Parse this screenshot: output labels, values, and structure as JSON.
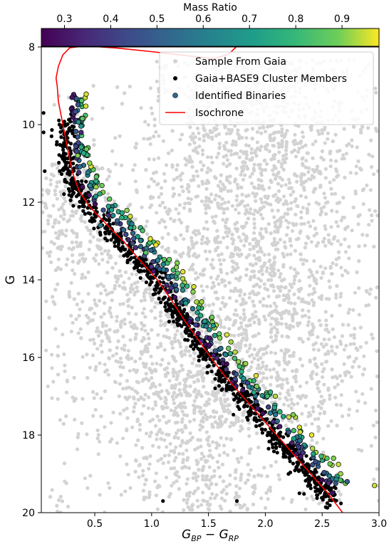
{
  "chart_data": {
    "type": "scatter",
    "title": "",
    "xlabel": "G_BP − G_RP",
    "xlabel_parts": {
      "main": "G",
      "sub1": "BP",
      "mid": " − G",
      "sub2": "RP"
    },
    "ylabel": "G",
    "xlim": [
      0.03,
      3.0
    ],
    "ylim": [
      20,
      8
    ],
    "y_inverted": true,
    "x_ticks": [
      0.5,
      1.0,
      1.5,
      2.0,
      2.5,
      3.0
    ],
    "x_tick_labels": [
      "0.5",
      "1.0",
      "1.5",
      "2.0",
      "2.5",
      "3.0"
    ],
    "y_ticks": [
      8,
      10,
      12,
      14,
      16,
      18,
      20
    ],
    "y_tick_labels": [
      "8",
      "10",
      "12",
      "14",
      "16",
      "18",
      "20"
    ],
    "grid": false,
    "legend_position": "top-right",
    "colorbar": {
      "label": "Mass Ratio",
      "range": [
        0.25,
        0.98
      ],
      "ticks": [
        0.3,
        0.4,
        0.5,
        0.6,
        0.7,
        0.8,
        0.9
      ],
      "tick_labels": [
        "0.3",
        "0.4",
        "0.5",
        "0.6",
        "0.7",
        "0.8",
        "0.9"
      ],
      "colormap": "viridis",
      "position": "top"
    },
    "series": [
      {
        "name": "Sample From Gaia",
        "color": "#d3d3d3",
        "marker": "dot"
      },
      {
        "name": "Gaia+BASE9 Cluster Members",
        "color": "#000000",
        "marker": "dot"
      },
      {
        "name": "Identified Binaries",
        "color": "viridis (by mass ratio)",
        "marker": "circle-outlined",
        "sample_points": [
          {
            "x": 0.3,
            "y": 9.3,
            "q": 0.3
          },
          {
            "x": 0.38,
            "y": 10.2,
            "q": 0.35
          },
          {
            "x": 0.35,
            "y": 10.8,
            "q": 0.9
          },
          {
            "x": 0.55,
            "y": 12.6,
            "q": 0.6
          },
          {
            "x": 0.95,
            "y": 13.3,
            "q": 0.85
          },
          {
            "x": 1.3,
            "y": 14.6,
            "q": 0.7
          },
          {
            "x": 1.6,
            "y": 15.5,
            "q": 0.9
          },
          {
            "x": 1.9,
            "y": 16.9,
            "q": 0.75
          },
          {
            "x": 2.3,
            "y": 17.8,
            "q": 0.95
          },
          {
            "x": 2.6,
            "y": 18.6,
            "q": 0.9
          },
          {
            "x": 2.72,
            "y": 19.2,
            "q": 0.5
          },
          {
            "x": 2.96,
            "y": 19.3,
            "q": 0.95
          }
        ]
      },
      {
        "name": "Isochrone",
        "color": "#ff0000",
        "marker": "line",
        "points": [
          [
            2.68,
            20.0
          ],
          [
            2.55,
            19.5
          ],
          [
            2.4,
            19.0
          ],
          [
            2.25,
            18.5
          ],
          [
            2.1,
            18.0
          ],
          [
            1.95,
            17.5
          ],
          [
            1.8,
            17.0
          ],
          [
            1.65,
            16.5
          ],
          [
            1.52,
            16.0
          ],
          [
            1.4,
            15.5
          ],
          [
            1.28,
            15.0
          ],
          [
            1.17,
            14.5
          ],
          [
            1.05,
            14.0
          ],
          [
            0.9,
            13.5
          ],
          [
            0.75,
            13.0
          ],
          [
            0.58,
            12.5
          ],
          [
            0.45,
            12.1
          ],
          [
            0.36,
            11.7
          ],
          [
            0.3,
            11.2
          ],
          [
            0.26,
            10.6
          ],
          [
            0.22,
            10.0
          ],
          [
            0.18,
            9.4
          ],
          [
            0.17,
            9.0
          ],
          [
            0.16,
            8.8
          ],
          [
            0.18,
            8.5
          ],
          [
            0.22,
            8.2
          ],
          [
            0.28,
            8.02
          ],
          [
            0.42,
            7.97
          ],
          [
            0.7,
            8.03
          ],
          [
            1.0,
            8.12
          ],
          [
            1.3,
            8.22
          ],
          [
            1.55,
            8.3
          ],
          [
            1.68,
            8.18
          ],
          [
            1.75,
            7.98
          ]
        ]
      }
    ]
  }
}
